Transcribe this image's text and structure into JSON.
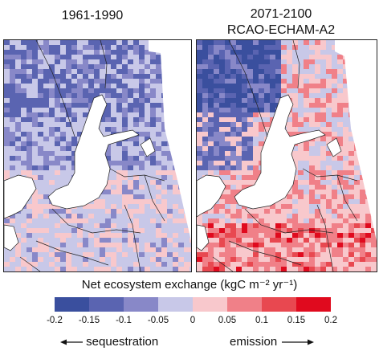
{
  "panels": [
    {
      "title_lines": [
        "1961-1990"
      ]
    },
    {
      "title_lines": [
        "2071-2100",
        "RCAO-ECHAM-A2"
      ]
    }
  ],
  "legend": {
    "title": "Net ecosystem exchange (kgC m⁻² yr⁻¹)",
    "colors": [
      "#3a4f9e",
      "#5a64b1",
      "#8888c8",
      "#c8c8e8",
      "#f8c8cc",
      "#f08088",
      "#e84850",
      "#e00a1e"
    ],
    "ticks": [
      "-0.2",
      "-0.15",
      "-0.1",
      "-0.05",
      "0",
      "0.05",
      "0.1",
      "0.15",
      "0.2"
    ],
    "left_arrow_label": "sequestration",
    "right_arrow_label": "emission"
  },
  "map_colors": {
    "sea": "#ffffff",
    "border": "#222222"
  }
}
